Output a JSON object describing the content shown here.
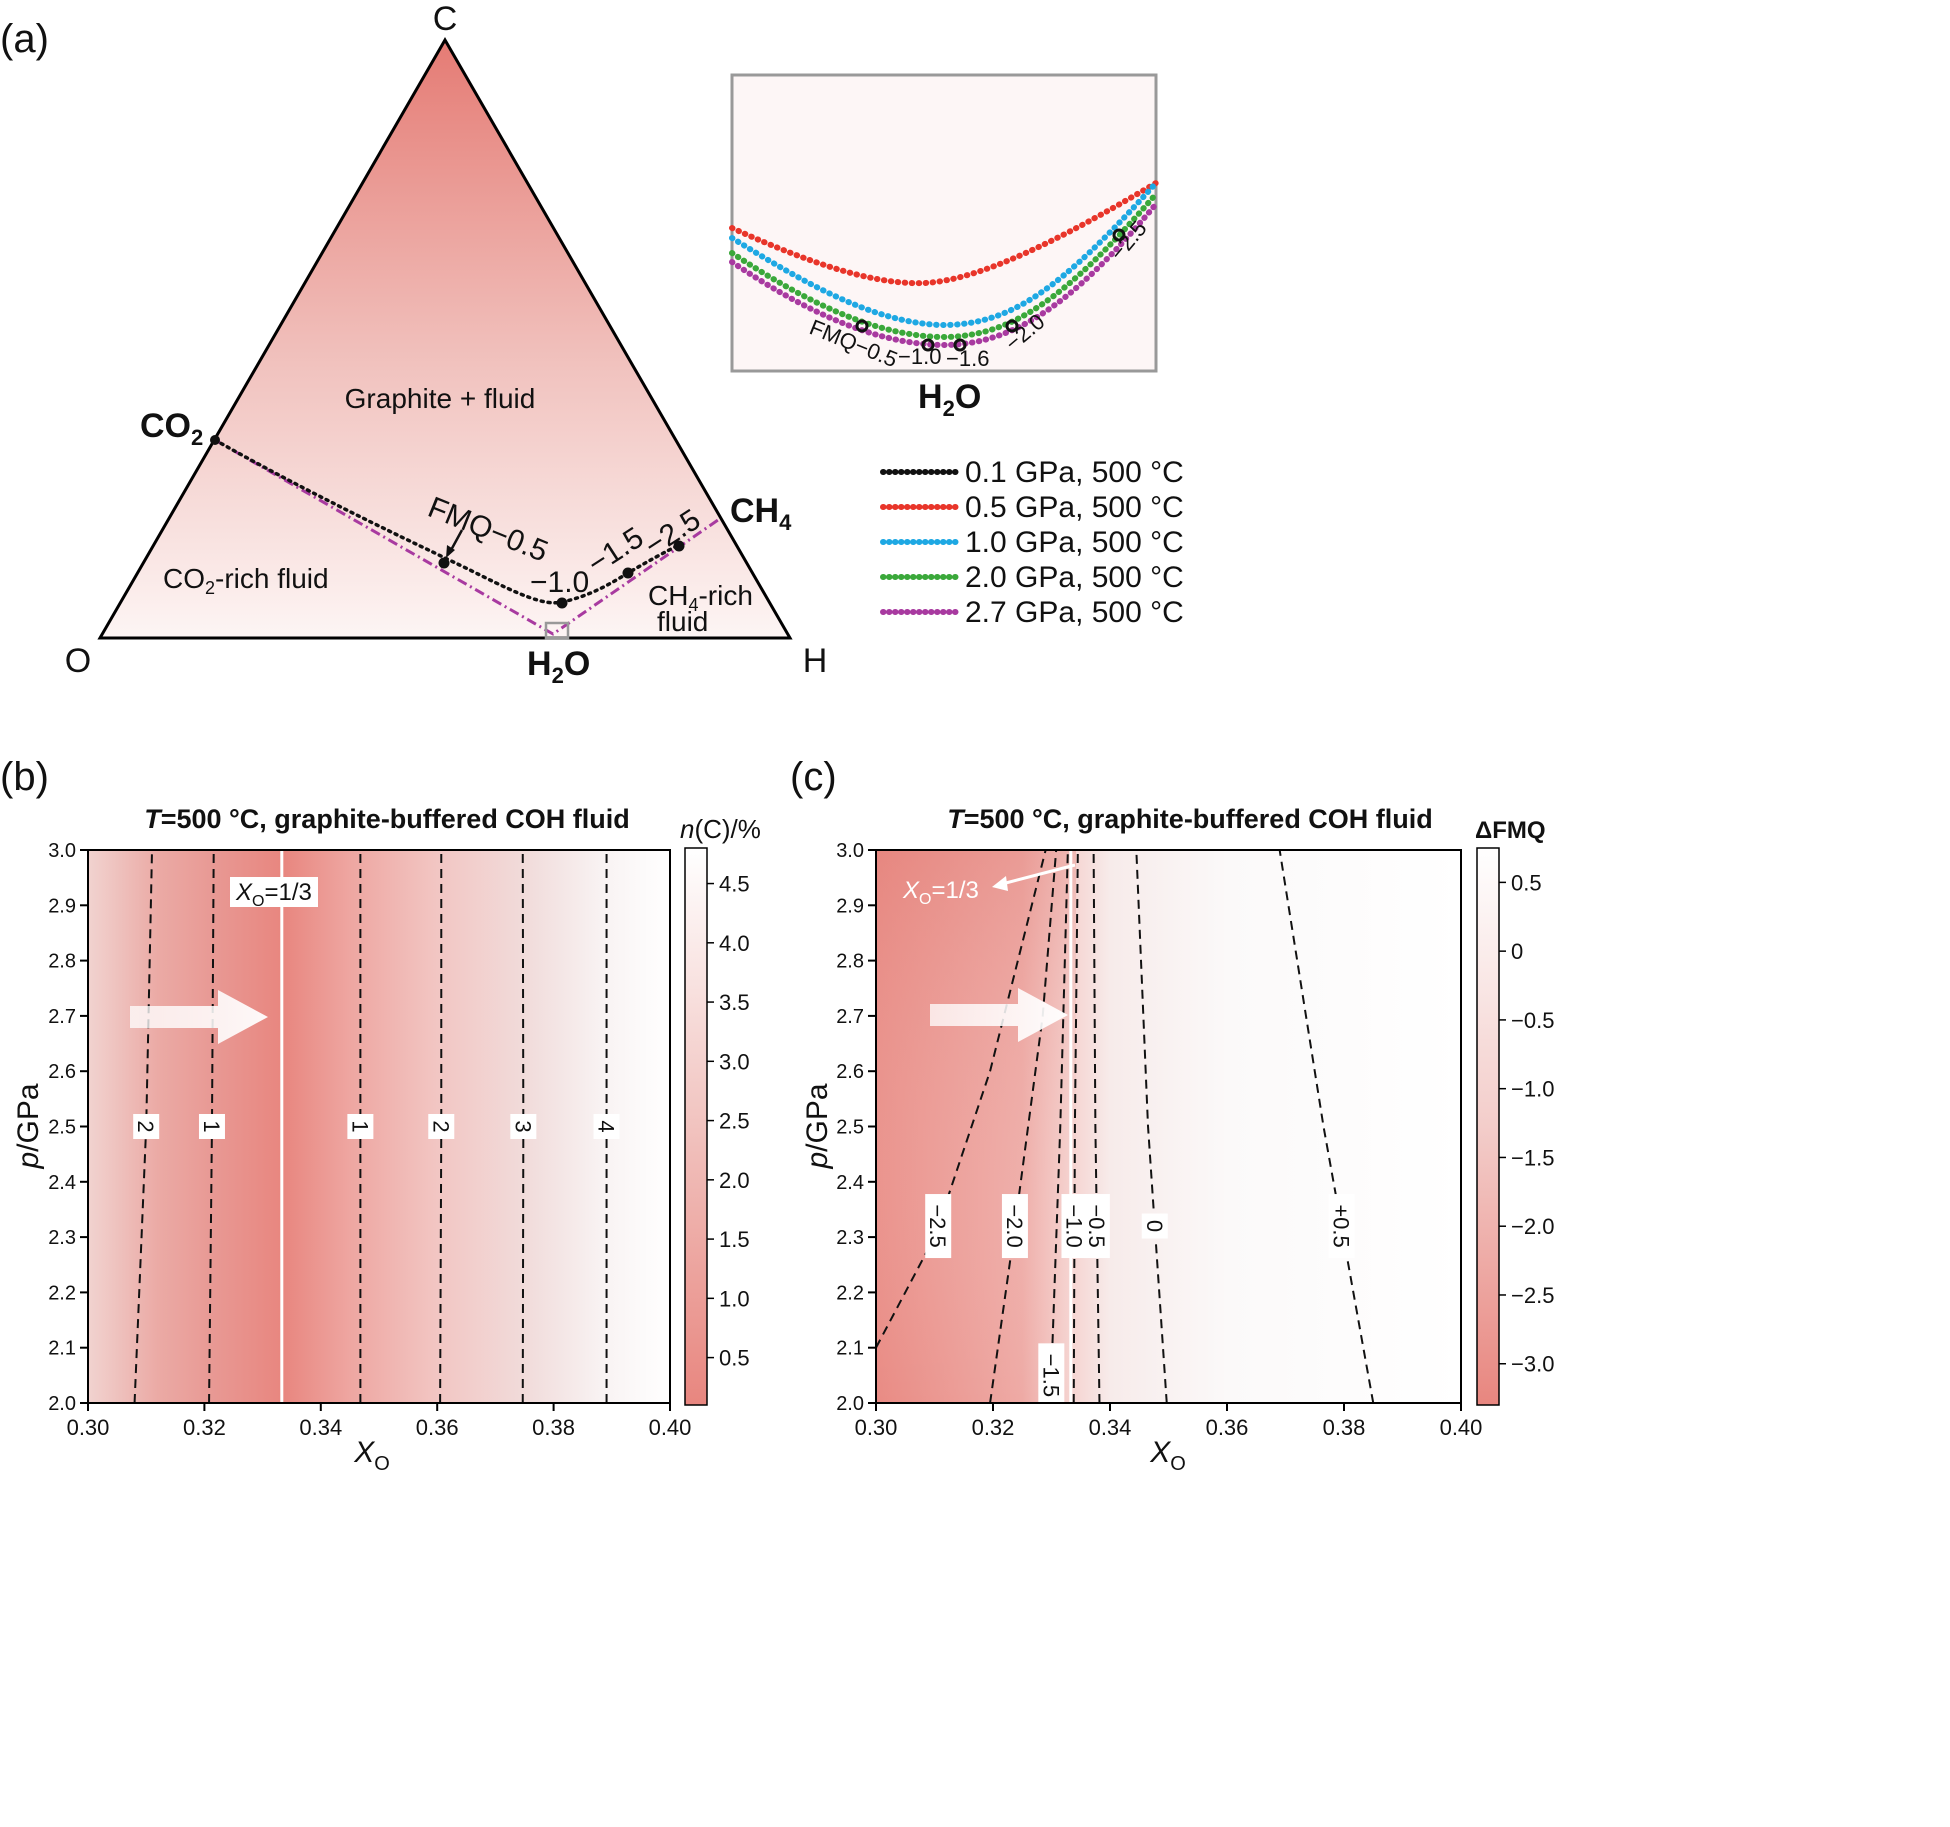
{
  "panel_a": {
    "label": "(a)",
    "vertex_c": "C",
    "vertex_o": "O",
    "vertex_h": "H",
    "co2": "CO",
    "co2_sub": "2",
    "ch4": "CH",
    "ch4_sub": "4",
    "h2o": "H",
    "h2o_sub": "2",
    "h2o_o": "O",
    "region_graphite": "Graphite + fluid",
    "region_co2_a": "CO",
    "region_co2_sub": "2",
    "region_co2_b": "-rich fluid",
    "region_ch4_a": "CH",
    "region_ch4_sub": "4",
    "region_ch4_b": "-rich",
    "region_ch4_c": "fluid",
    "lbl_fmq05": "FMQ−0.5",
    "lbl_m10": "−1.0",
    "lbl_m15": "−1.5",
    "lbl_m25": "−2.5",
    "inset": {
      "lbl_fmq05": "FMQ−0.5",
      "lbl_m10": "−1.0",
      "lbl_m16": "−1.6",
      "lbl_m20": "−2.0",
      "lbl_m25": "−2.5",
      "caption_h": "H",
      "caption_sub": "2",
      "caption_o": "O"
    },
    "legend": [
      {
        "label": "0.1 GPa, 500 °C",
        "color": "#111111"
      },
      {
        "label": "0.5 GPa, 500 °C",
        "color": "#e8352a"
      },
      {
        "label": "1.0 GPa, 500 °C",
        "color": "#1ea8e3"
      },
      {
        "label": "2.0 GPa, 500 °C",
        "color": "#3aa83a"
      },
      {
        "label": "2.7 GPa, 500 °C",
        "color": "#a83aa0"
      }
    ]
  },
  "panel_b": {
    "label": "(b)",
    "title_t": "T",
    "title_rest": "=500 °C, graphite-buffered COH fluid",
    "ylabel_p": "p",
    "ylabel_rest": "/GPa",
    "xlabel": "X",
    "xlabel_sub": "O",
    "annot_x": "X",
    "annot_sub": "O",
    "annot_val": "=1/3",
    "cbar_label_n": "n",
    "cbar_label_rest": "(C)/%",
    "cbar_ticks": [
      "0.5",
      "1.0",
      "1.5",
      "2.0",
      "2.5",
      "3.0",
      "3.5",
      "4.0",
      "4.5"
    ],
    "contour_labels": [
      "2",
      "1",
      "1",
      "2",
      "3",
      "4"
    ]
  },
  "panel_c": {
    "label": "(c)",
    "title_t": "T",
    "title_rest": "=500 °C, graphite-buffered COH fluid",
    "ylabel_p": "p",
    "ylabel_rest": "/GPa",
    "xlabel": "X",
    "xlabel_sub": "O",
    "annot_x": "X",
    "annot_sub": "O",
    "annot_val": "=1/3",
    "cbar_label": "ΔFMQ",
    "cbar_ticks": [
      "0.5",
      "0",
      "−0.5",
      "−1.0",
      "−1.5",
      "−2.0",
      "−2.5",
      "−3.0"
    ],
    "contour_labels": [
      "−2.5",
      "−2.0",
      "−1.5",
      "−1.0",
      "−0.5",
      "0",
      "+0.5"
    ]
  },
  "chart_data": [
    {
      "type": "ternary",
      "vertices": [
        "C",
        "O",
        "H"
      ],
      "series": [
        {
          "name": "0.1 GPa, 500 °C",
          "buffer_points": [
            "FMQ−0.5",
            "−1.0",
            "−1.5",
            "−2.5"
          ]
        },
        {
          "name": "0.5 GPa, 500 °C"
        },
        {
          "name": "1.0 GPa, 500 °C"
        },
        {
          "name": "2.0 GPa, 500 °C"
        },
        {
          "name": "2.7 GPa, 500 °C",
          "buffer_points": [
            "FMQ−0.5",
            "−1.0",
            "−1.6",
            "−2.0",
            "−2.5"
          ]
        }
      ]
    },
    {
      "type": "heatmap",
      "title": "T=500 °C, graphite-buffered COH fluid",
      "xlabel": "XO",
      "ylabel": "p/GPa",
      "xlim": [
        0.3,
        0.4
      ],
      "ylim": [
        2.0,
        3.0
      ],
      "xticks": [
        "0.30",
        "0.32",
        "0.34",
        "0.36",
        "0.38",
        "0.40"
      ],
      "yticks": [
        "2.0",
        "2.1",
        "2.2",
        "2.3",
        "2.4",
        "2.5",
        "2.6",
        "2.7",
        "2.8",
        "2.9",
        "3.0"
      ],
      "colorbar": "n(C)/%",
      "colorbar_range": [
        0.1,
        4.8
      ],
      "vertical_line_x": 0.3333,
      "contours": [
        {
          "label": "2",
          "x_at_p": [
            [
              2.0,
              0.308
            ],
            [
              2.5,
              0.31
            ],
            [
              3.0,
              0.311
            ]
          ]
        },
        {
          "label": "1",
          "x_at_p": [
            [
              2.0,
              0.3208
            ],
            [
              2.5,
              0.3213
            ],
            [
              3.0,
              0.3216
            ]
          ]
        },
        {
          "label": "1",
          "x_at_p": [
            [
              2.0,
              0.3468
            ],
            [
              2.5,
              0.3468
            ],
            [
              3.0,
              0.3468
            ]
          ]
        },
        {
          "label": "2",
          "x_at_p": [
            [
              2.0,
              0.3605
            ],
            [
              2.5,
              0.3607
            ],
            [
              3.0,
              0.3607
            ]
          ]
        },
        {
          "label": "3",
          "x_at_p": [
            [
              2.0,
              0.3747
            ],
            [
              2.5,
              0.3748
            ],
            [
              3.0,
              0.3747
            ]
          ]
        },
        {
          "label": "4",
          "x_at_p": [
            [
              2.0,
              0.3891
            ],
            [
              2.5,
              0.3891
            ],
            [
              3.0,
              0.3891
            ]
          ]
        }
      ]
    },
    {
      "type": "heatmap",
      "title": "T=500 °C, graphite-buffered COH fluid",
      "xlabel": "XO",
      "ylabel": "p/GPa",
      "xlim": [
        0.3,
        0.4
      ],
      "ylim": [
        2.0,
        3.0
      ],
      "xticks": [
        "0.30",
        "0.32",
        "0.34",
        "0.36",
        "0.38",
        "0.40"
      ],
      "yticks": [
        "2.0",
        "2.1",
        "2.2",
        "2.3",
        "2.4",
        "2.5",
        "2.6",
        "2.7",
        "2.8",
        "2.9",
        "3.0"
      ],
      "colorbar": "ΔFMQ",
      "colorbar_range": [
        -3.3,
        0.75
      ],
      "vertical_line_x": 0.3333,
      "contours": [
        {
          "label": "−2.5",
          "x_at_p": [
            [
              2.1,
              0.3
            ],
            [
              2.3,
              0.31
            ],
            [
              2.6,
              0.3195
            ],
            [
              3.0,
              0.329
            ]
          ]
        },
        {
          "label": "−2.0",
          "x_at_p": [
            [
              2.0,
              0.3195
            ],
            [
              2.3,
              0.3235
            ],
            [
              2.7,
              0.3285
            ],
            [
              3.0,
              0.3308
            ]
          ]
        },
        {
          "label": "−1.5",
          "x_at_p": [
            [
              2.0,
              0.3298
            ],
            [
              2.5,
              0.3315
            ],
            [
              3.0,
              0.3328
            ]
          ]
        },
        {
          "label": "−1.0",
          "x_at_p": [
            [
              2.0,
              0.3338
            ],
            [
              2.5,
              0.334
            ],
            [
              3.0,
              0.3345
            ]
          ]
        },
        {
          "label": "−0.5",
          "x_at_p": [
            [
              2.0,
              0.3382
            ],
            [
              2.5,
              0.3375
            ],
            [
              3.0,
              0.3372
            ]
          ]
        },
        {
          "label": "0",
          "x_at_p": [
            [
              2.0,
              0.3497
            ],
            [
              2.5,
              0.3465
            ],
            [
              3.0,
              0.3445
            ]
          ]
        },
        {
          "label": "+0.5",
          "x_at_p": [
            [
              2.0,
              0.385
            ],
            [
              2.5,
              0.3765
            ],
            [
              3.0,
              0.369
            ]
          ]
        }
      ]
    }
  ]
}
